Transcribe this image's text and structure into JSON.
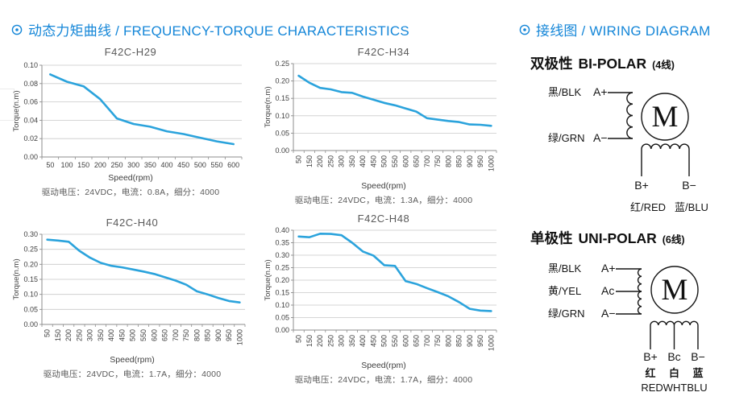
{
  "header": {
    "left_title": "动态力矩曲线 / FREQUENCY-TORQUE CHARACTERISTICS",
    "right_title": "接线图 / WIRING DIAGRAM"
  },
  "colors": {
    "accent": "#1486D8",
    "curve": "#2BA3DC",
    "grid": "#C9C9C9",
    "axis": "#8C8C8C"
  },
  "chart_data": [
    {
      "type": "line",
      "title": "F42C-H29",
      "ylabel": "Torque(n.m)",
      "xlabel": "Speed(rpm)",
      "caption": "驱动电压：24VDC，电流：0.8A，细分：4000",
      "ylim": [
        0,
        0.1
      ],
      "ytick": 0.02,
      "grid": "horizontal",
      "legend": "none",
      "categories": [
        50,
        100,
        150,
        200,
        250,
        300,
        350,
        400,
        450,
        500,
        550,
        600
      ],
      "values": [
        0.09,
        0.082,
        0.077,
        0.063,
        0.042,
        0.036,
        0.033,
        0.028,
        0.025,
        0.021,
        0.017,
        0.014
      ]
    },
    {
      "type": "line",
      "title": "F42C-H34",
      "ylabel": "Torque(n.m)",
      "xlabel": "Speed(rpm)",
      "caption": "驱动电压：24VDC，电流：1.3A，细分：4000",
      "ylim": [
        0,
        0.25
      ],
      "ytick": 0.05,
      "grid": "horizontal",
      "legend": "none",
      "categories": [
        50,
        150,
        200,
        250,
        300,
        350,
        400,
        450,
        500,
        550,
        600,
        650,
        700,
        750,
        800,
        850,
        900,
        950,
        1000
      ],
      "values": [
        0.215,
        0.195,
        0.18,
        0.176,
        0.168,
        0.166,
        0.155,
        0.146,
        0.137,
        0.13,
        0.121,
        0.112,
        0.093,
        0.089,
        0.085,
        0.082,
        0.075,
        0.074,
        0.071
      ]
    },
    {
      "type": "line",
      "title": "F42C-H40",
      "ylabel": "Torque(n.m)",
      "xlabel": "Speed(rpm)",
      "caption": "驱动电压：24VDC，电流：1.7A，细分：4000",
      "ylim": [
        0,
        0.3
      ],
      "ytick": 0.05,
      "grid": "horizontal",
      "legend": "none",
      "categories": [
        50,
        150,
        200,
        250,
        300,
        350,
        400,
        450,
        500,
        550,
        600,
        650,
        700,
        750,
        800,
        850,
        900,
        950,
        1000
      ],
      "values": [
        0.282,
        0.279,
        0.275,
        0.245,
        0.222,
        0.205,
        0.195,
        0.19,
        0.183,
        0.176,
        0.168,
        0.157,
        0.146,
        0.132,
        0.11,
        0.1,
        0.088,
        0.078,
        0.073
      ]
    },
    {
      "type": "line",
      "title": "F42C-H48",
      "ylabel": "Torque(n.m)",
      "xlabel": "Speed(rpm)",
      "caption": "驱动电压：24VDC，电流：1.7A，细分：4000",
      "ylim": [
        0,
        0.4
      ],
      "ytick": 0.05,
      "grid": "horizontal",
      "legend": "none",
      "categories": [
        50,
        150,
        200,
        250,
        300,
        350,
        400,
        450,
        500,
        550,
        600,
        650,
        700,
        750,
        800,
        850,
        900,
        950,
        1000
      ],
      "values": [
        0.375,
        0.372,
        0.386,
        0.385,
        0.38,
        0.35,
        0.315,
        0.298,
        0.26,
        0.257,
        0.196,
        0.185,
        0.168,
        0.152,
        0.135,
        0.112,
        0.085,
        0.078,
        0.076
      ]
    }
  ],
  "wiring": {
    "bipolar": {
      "title_zh": "双极性",
      "title_en": "BI-POLAR",
      "wire_count": "(4线)",
      "motor_label": "M",
      "phase_a": [
        {
          "wire": "黑/BLK",
          "terminal": "A+"
        },
        {
          "wire": "绿/GRN",
          "terminal": "A−"
        }
      ],
      "phase_b_terminals": [
        "B+",
        "B−"
      ],
      "phase_b_wires": [
        "红/RED",
        "蓝/BLU"
      ]
    },
    "unipolar": {
      "title_zh": "单极性",
      "title_en": "UNI-POLAR",
      "wire_count": "(6线)",
      "motor_label": "M",
      "phase_a": [
        {
          "wire": "黑/BLK",
          "terminal": "A+"
        },
        {
          "wire": "黄/YEL",
          "terminal": "Ac"
        },
        {
          "wire": "绿/GRN",
          "terminal": "A−"
        }
      ],
      "phase_b_terminals": [
        "B+",
        "Bc",
        "B−"
      ],
      "phase_b_wires": [
        "红",
        "白",
        "蓝"
      ],
      "phase_b_caption": "REDWHTBLU"
    }
  }
}
